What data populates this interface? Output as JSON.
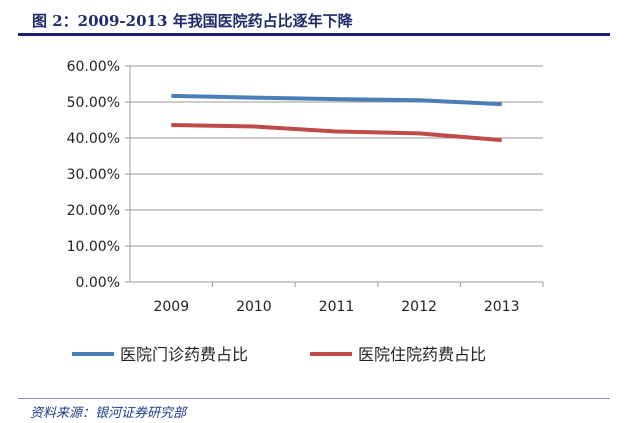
{
  "title": "图 2：2009-2013 年我国医院药占比逐年下降",
  "source": "资料来源：银河证券研究部",
  "chart_data": {
    "type": "line",
    "categories": [
      "2009",
      "2010",
      "2011",
      "2012",
      "2013"
    ],
    "yticks": [
      "0.00%",
      "10.00%",
      "20.00%",
      "30.00%",
      "40.00%",
      "50.00%",
      "60.00%"
    ],
    "ylim": [
      0,
      60
    ],
    "grid": true,
    "legend_placement": "bottom",
    "series": [
      {
        "name": "医院门诊药费占比",
        "color": "#4a7ebb",
        "values": [
          51.7,
          51.2,
          50.8,
          50.5,
          49.4
        ]
      },
      {
        "name": "医院住院药费占比",
        "color": "#be4b48",
        "values": [
          43.6,
          43.2,
          41.8,
          41.3,
          39.4
        ]
      }
    ]
  }
}
